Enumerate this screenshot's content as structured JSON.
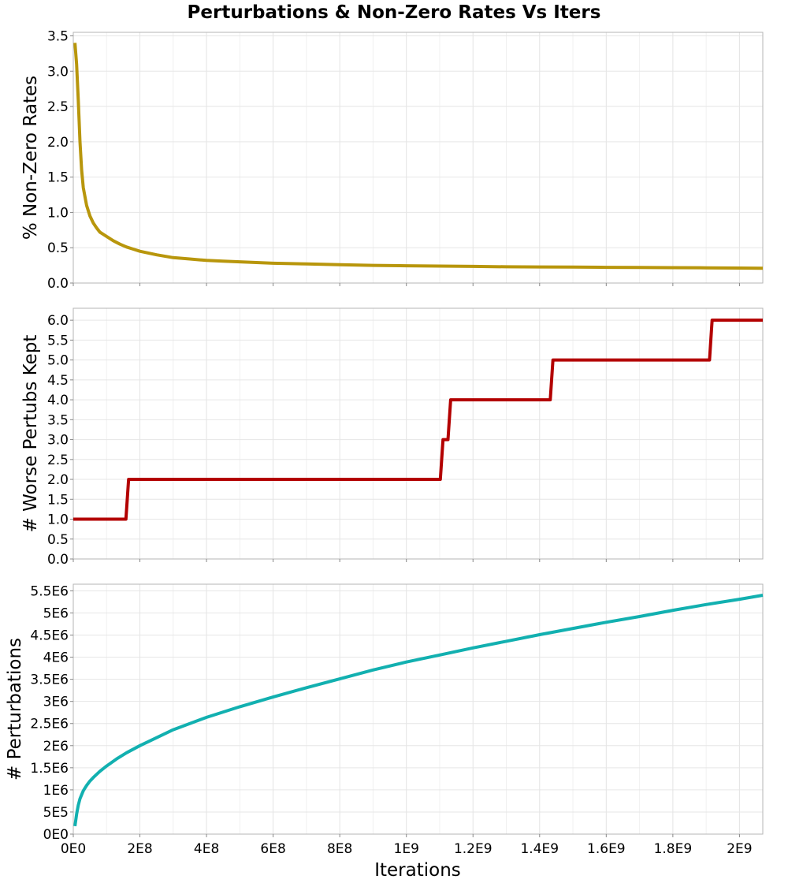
{
  "title": "Perturbations & Non-Zero Rates Vs Iters",
  "xlabel": "Iterations",
  "x_ticks": [
    {
      "value": 0,
      "label": "0E0"
    },
    {
      "value": 200000000,
      "label": "2E8"
    },
    {
      "value": 400000000,
      "label": "4E8"
    },
    {
      "value": 600000000,
      "label": "6E8"
    },
    {
      "value": 800000000,
      "label": "8E8"
    },
    {
      "value": 1000000000,
      "label": "1E9"
    },
    {
      "value": 1200000000,
      "label": "1.2E9"
    },
    {
      "value": 1400000000,
      "label": "1.4E9"
    },
    {
      "value": 1600000000,
      "label": "1.6E9"
    },
    {
      "value": 1800000000,
      "label": "1.8E9"
    },
    {
      "value": 2000000000,
      "label": "2E9"
    }
  ],
  "chart_data": [
    {
      "type": "line",
      "ylabel": "% Non-Zero Rates",
      "xlim": [
        0,
        2070000000
      ],
      "ylim": [
        0,
        3.55
      ],
      "grid": true,
      "color": "#b8960c",
      "y_ticks": [
        {
          "value": 0,
          "label": "0.0"
        },
        {
          "value": 0.5,
          "label": "0.5"
        },
        {
          "value": 1.0,
          "label": "1.0"
        },
        {
          "value": 1.5,
          "label": "1.5"
        },
        {
          "value": 2.0,
          "label": "2.0"
        },
        {
          "value": 2.5,
          "label": "2.5"
        },
        {
          "value": 3.0,
          "label": "3.0"
        },
        {
          "value": 3.5,
          "label": "3.5"
        }
      ],
      "x": [
        5000000,
        10000000,
        15000000,
        20000000,
        25000000,
        30000000,
        40000000,
        50000000,
        60000000,
        70000000,
        80000000,
        100000000,
        120000000,
        140000000,
        160000000,
        180000000,
        200000000,
        250000000,
        300000000,
        350000000,
        400000000,
        450000000,
        500000000,
        600000000,
        700000000,
        800000000,
        900000000,
        1000000000,
        1100000000,
        1200000000,
        1300000000,
        1400000000,
        1500000000,
        1600000000,
        1700000000,
        1800000000,
        1900000000,
        2000000000,
        2070000000
      ],
      "y": [
        3.4,
        3.1,
        2.6,
        2.0,
        1.6,
        1.35,
        1.1,
        0.95,
        0.85,
        0.78,
        0.72,
        0.66,
        0.6,
        0.55,
        0.51,
        0.48,
        0.45,
        0.4,
        0.36,
        0.34,
        0.32,
        0.31,
        0.3,
        0.28,
        0.27,
        0.26,
        0.25,
        0.245,
        0.24,
        0.235,
        0.23,
        0.228,
        0.225,
        0.222,
        0.22,
        0.218,
        0.215,
        0.212,
        0.21
      ]
    },
    {
      "type": "line",
      "ylabel": "# Worse Pertubs Kept",
      "xlim": [
        0,
        2070000000
      ],
      "ylim": [
        0,
        6.3
      ],
      "grid": true,
      "color": "#b30000",
      "y_ticks": [
        {
          "value": 0,
          "label": "0.0"
        },
        {
          "value": 0.5,
          "label": "0.5"
        },
        {
          "value": 1.0,
          "label": "1.0"
        },
        {
          "value": 1.5,
          "label": "1.5"
        },
        {
          "value": 2.0,
          "label": "2.0"
        },
        {
          "value": 2.5,
          "label": "2.5"
        },
        {
          "value": 3.0,
          "label": "3.0"
        },
        {
          "value": 3.5,
          "label": "3.5"
        },
        {
          "value": 4.0,
          "label": "4.0"
        },
        {
          "value": 4.5,
          "label": "4.5"
        },
        {
          "value": 5.0,
          "label": "5.0"
        },
        {
          "value": 5.5,
          "label": "5.5"
        },
        {
          "value": 6.0,
          "label": "6.0"
        }
      ],
      "x": [
        0,
        158000000,
        166000000,
        1102000000,
        1110000000,
        1125000000,
        1133000000,
        1432000000,
        1440000000,
        1910000000,
        1918000000,
        2070000000
      ],
      "y": [
        1,
        1,
        2,
        2,
        3,
        3,
        4,
        4,
        5,
        5,
        6,
        6
      ]
    },
    {
      "type": "line",
      "ylabel": "# Perturbations",
      "xlim": [
        0,
        2070000000
      ],
      "ylim": [
        0,
        5650000
      ],
      "grid": true,
      "color": "#12b0b0",
      "y_ticks": [
        {
          "value": 0,
          "label": "0E0"
        },
        {
          "value": 500000,
          "label": "5E5"
        },
        {
          "value": 1000000,
          "label": "1E6"
        },
        {
          "value": 1500000,
          "label": "1.5E6"
        },
        {
          "value": 2000000,
          "label": "2E6"
        },
        {
          "value": 2500000,
          "label": "2.5E6"
        },
        {
          "value": 3000000,
          "label": "3E6"
        },
        {
          "value": 3500000,
          "label": "3.5E6"
        },
        {
          "value": 4000000,
          "label": "4E6"
        },
        {
          "value": 4500000,
          "label": "4.5E6"
        },
        {
          "value": 5000000,
          "label": "5E6"
        },
        {
          "value": 5500000,
          "label": "5.5E6"
        }
      ],
      "x": [
        5000000,
        10000000,
        15000000,
        20000000,
        30000000,
        40000000,
        50000000,
        60000000,
        80000000,
        100000000,
        130000000,
        160000000,
        200000000,
        250000000,
        300000000,
        400000000,
        500000000,
        600000000,
        700000000,
        800000000,
        900000000,
        1000000000,
        1100000000,
        1200000000,
        1300000000,
        1400000000,
        1500000000,
        1600000000,
        1700000000,
        1800000000,
        1900000000,
        2000000000,
        2070000000
      ],
      "y": [
        180000,
        450000,
        650000,
        800000,
        980000,
        1100000,
        1200000,
        1280000,
        1420000,
        1540000,
        1700000,
        1840000,
        2000000,
        2180000,
        2360000,
        2640000,
        2880000,
        3100000,
        3310000,
        3510000,
        3710000,
        3890000,
        4050000,
        4210000,
        4360000,
        4510000,
        4650000,
        4790000,
        4920000,
        5060000,
        5190000,
        5310000,
        5400000
      ]
    }
  ]
}
